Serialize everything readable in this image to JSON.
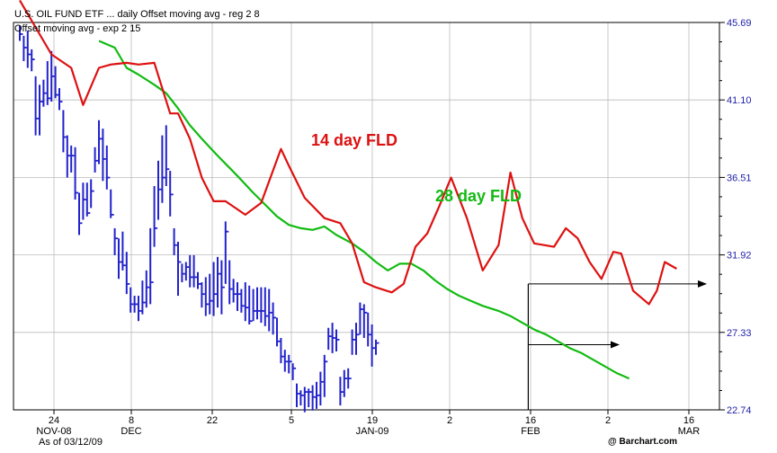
{
  "legend": [
    "U.S. OIL FUND  ETF ... daily  Offset moving avg - reg   2   8",
    "Offset moving avg - exp    2  15"
  ],
  "footer": {
    "as_of": "As of 03/12/09",
    "source": "@ Barchart.com"
  },
  "colors": {
    "price": "#2222cc",
    "fld14": "#dd1111",
    "fld28": "#11bb11",
    "axis": "#000000",
    "grid": "#bbbbbb",
    "ytick": "#2222aa"
  },
  "chart_data": {
    "type": "line",
    "title": "",
    "ylim": [
      22.74,
      45.69
    ],
    "y_ticks": [
      "45.69",
      "41.10",
      "36.51",
      "31.92",
      "27.33",
      "22.74"
    ],
    "x_ticks": [
      {
        "label": "24",
        "month": "NOV-08"
      },
      {
        "label": "8",
        "month": "DEC"
      },
      {
        "label": "22",
        "month": ""
      },
      {
        "label": "5",
        "month": ""
      },
      {
        "label": "19",
        "month": "JAN-09"
      },
      {
        "label": "2",
        "month": ""
      },
      {
        "label": "16",
        "month": "FEB"
      },
      {
        "label": "2",
        "month": ""
      },
      {
        "label": "16",
        "month": "MAR"
      }
    ],
    "grid": true,
    "annotations": [
      {
        "text": "14 day FLD",
        "color": "#dd1111"
      },
      {
        "text": "28 day FLD",
        "color": "#11bb11"
      }
    ],
    "series": [
      {
        "type": "ohlc",
        "bars": [
          [
            45.5,
            44.6,
            45.0
          ],
          [
            44.9,
            43.4,
            44.2
          ],
          [
            45.2,
            43.0,
            43.8
          ],
          [
            44.1,
            42.8,
            43.5
          ],
          [
            42.5,
            39.0,
            40.0
          ],
          [
            42.0,
            39.0,
            41.0
          ],
          [
            42.3,
            40.7,
            41.5
          ],
          [
            43.4,
            40.8,
            41.2
          ],
          [
            44.0,
            41.0,
            42.5
          ],
          [
            43.1,
            41.2,
            41.4
          ],
          [
            41.8,
            40.5,
            41.0
          ],
          [
            40.5,
            38.0,
            38.9
          ],
          [
            39.0,
            36.5,
            37.8
          ],
          [
            38.4,
            36.8,
            37.8
          ],
          [
            38.3,
            35.2,
            35.6
          ],
          [
            35.6,
            33.1,
            33.8
          ],
          [
            36.2,
            34.0,
            35.2
          ],
          [
            36.2,
            34.2,
            34.4
          ],
          [
            36.4,
            34.7,
            35.7
          ],
          [
            38.3,
            36.8,
            37.5
          ],
          [
            39.9,
            37.3,
            38.8
          ],
          [
            39.4,
            36.3,
            37.6
          ],
          [
            38.4,
            35.8,
            36.5
          ],
          [
            35.8,
            34.1,
            34.3
          ],
          [
            33.5,
            31.9,
            32.9
          ],
          [
            32.9,
            30.5,
            31.5
          ],
          [
            33.3,
            31.0,
            31.3
          ],
          [
            32.1,
            29.6,
            30.2
          ],
          [
            30.0,
            28.5,
            29.0
          ],
          [
            29.5,
            28.5,
            29.0
          ],
          [
            29.5,
            28.0,
            28.6
          ],
          [
            30.4,
            28.4,
            29.1
          ],
          [
            31.0,
            28.8,
            30.0
          ],
          [
            33.5,
            29.0,
            30.3
          ],
          [
            36.0,
            32.4,
            33.5
          ],
          [
            37.5,
            34.0,
            35.8
          ],
          [
            39.0,
            35.0,
            36.5
          ],
          [
            39.6,
            36.0,
            37.0
          ],
          [
            36.9,
            34.2,
            35.5
          ],
          [
            33.5,
            31.9,
            32.5
          ],
          [
            32.7,
            29.5,
            31.5
          ],
          [
            31.4,
            30.3,
            30.8
          ],
          [
            31.5,
            30.4,
            31.2
          ],
          [
            31.9,
            30.0,
            30.6
          ],
          [
            31.9,
            30.0,
            30.6
          ],
          [
            30.9,
            29.9,
            30.2
          ],
          [
            30.3,
            28.8,
            29.6
          ],
          [
            30.6,
            28.3,
            29.0
          ],
          [
            30.8,
            28.4,
            29.2
          ],
          [
            31.5,
            28.3,
            29.6
          ],
          [
            31.8,
            28.8,
            30.8
          ],
          [
            31.6,
            28.4,
            30.0
          ],
          [
            33.9,
            30.2,
            33.3
          ],
          [
            31.6,
            29.0,
            29.9
          ],
          [
            30.5,
            29.1,
            29.6
          ],
          [
            30.3,
            28.6,
            29.6
          ],
          [
            29.9,
            28.5,
            28.9
          ],
          [
            30.3,
            28.0,
            28.8
          ],
          [
            30.1,
            27.8,
            28.0
          ],
          [
            29.9,
            28.0,
            28.6
          ],
          [
            30.0,
            28.1,
            28.6
          ],
          [
            30.0,
            27.9,
            28.6
          ],
          [
            30.0,
            27.7,
            28.3
          ],
          [
            29.9,
            27.4,
            28.5
          ],
          [
            29.1,
            27.2,
            28.2
          ],
          [
            28.2,
            26.5,
            26.8
          ],
          [
            27.0,
            25.5,
            25.9
          ],
          [
            26.3,
            25.0,
            25.6
          ],
          [
            26.0,
            24.9,
            25.6
          ],
          [
            25.5,
            24.5,
            25.2
          ],
          [
            24.3,
            22.9,
            23.7
          ],
          [
            23.9,
            23.0,
            23.6
          ],
          [
            24.1,
            22.6,
            23.8
          ],
          [
            24.0,
            22.9,
            23.8
          ],
          [
            24.2,
            22.7,
            23.5
          ],
          [
            24.4,
            22.8,
            23.6
          ],
          [
            25.0,
            23.0,
            24.4
          ],
          [
            26.0,
            23.5,
            25.6
          ],
          [
            27.6,
            26.3,
            27.1
          ],
          [
            27.9,
            26.1,
            27.0
          ],
          [
            27.5,
            26.2,
            26.9
          ],
          [
            24.7,
            23.0,
            23.8
          ],
          [
            25.1,
            23.5,
            24.6
          ],
          [
            25.2,
            24.0,
            24.6
          ],
          [
            27.5,
            26.0,
            26.9
          ],
          [
            27.9,
            26.0,
            27.2
          ],
          [
            29.1,
            27.2,
            28.7
          ],
          [
            29.0,
            27.0,
            28.5
          ],
          [
            28.5,
            26.5,
            27.2
          ],
          [
            27.8,
            25.3,
            26.4
          ],
          [
            26.9,
            26.0,
            26.7
          ]
        ]
      },
      {
        "name": "",
        "color": "#dd1111",
        "x": [
          0,
          8,
          13,
          16,
          20,
          23,
          27,
          30,
          34,
          38,
          40,
          43,
          46,
          49,
          52,
          57,
          61,
          66,
          68,
          72,
          77,
          81,
          84,
          87,
          90,
          94,
          97,
          100,
          103,
          106,
          109,
          113,
          117,
          121,
          124,
          127,
          130,
          135,
          138,
          141,
          144,
          147,
          150,
          152,
          155,
          159,
          161,
          163,
          166
        ],
        "y": [
          47.0,
          43.8,
          43.0,
          40.8,
          43.0,
          43.2,
          43.3,
          43.2,
          43.3,
          40.3,
          40.3,
          38.8,
          36.5,
          35.1,
          35.1,
          34.3,
          35.0,
          38.2,
          37.2,
          35.3,
          34.1,
          33.8,
          32.6,
          30.3,
          30.0,
          29.7,
          30.2,
          32.4,
          33.2,
          34.8,
          36.5,
          34.1,
          31.0,
          32.5,
          36.8,
          34.1,
          32.6,
          32.4,
          33.5,
          32.9,
          31.5,
          30.5,
          32.1,
          32.0,
          29.8,
          29.0,
          29.8,
          31.5,
          31.1
        ]
      },
      {
        "name": "",
        "color": "#11bb11",
        "x": [
          20,
          24,
          27,
          30,
          34,
          37,
          40,
          43,
          46,
          50,
          55,
          59,
          62,
          65,
          68,
          71,
          74,
          77,
          80,
          84,
          87,
          90,
          93,
          96,
          99,
          102,
          105,
          108,
          111,
          114,
          117,
          121,
          124,
          127,
          130,
          133,
          136,
          139,
          142,
          145,
          148,
          151,
          154
        ],
        "y": [
          44.6,
          44.2,
          43.0,
          42.6,
          42.0,
          41.5,
          40.6,
          39.6,
          38.8,
          37.8,
          36.6,
          35.6,
          34.9,
          34.2,
          33.7,
          33.5,
          33.4,
          33.6,
          33.1,
          32.6,
          32.1,
          31.5,
          31.0,
          31.4,
          31.4,
          31.0,
          30.4,
          29.9,
          29.5,
          29.2,
          28.9,
          28.6,
          28.3,
          27.9,
          27.5,
          27.2,
          26.8,
          26.4,
          26.1,
          25.7,
          25.3,
          24.9,
          24.6
        ]
      }
    ]
  }
}
